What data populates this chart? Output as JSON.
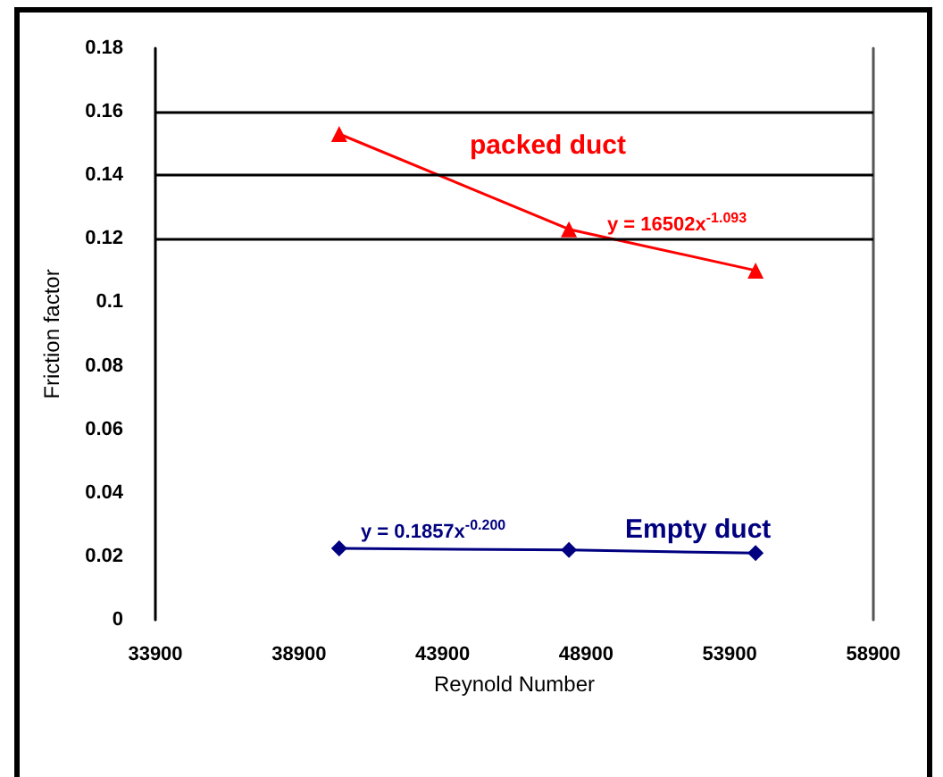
{
  "chart_data": {
    "type": "line",
    "xlabel": "Reynold Number",
    "ylabel": "Friction factor",
    "xlim": [
      33900,
      58900
    ],
    "xticks": [
      33900,
      38900,
      43900,
      48900,
      53900,
      58900
    ],
    "ylim": [
      0,
      0.18
    ],
    "yticks": [
      0,
      0.02,
      0.04,
      0.06,
      0.08,
      0.1,
      0.12,
      0.14,
      0.16,
      0.18
    ],
    "grid": false,
    "legend": false,
    "series": [
      {
        "name": "packed duct",
        "color": "#ff0000",
        "marker": "triangle",
        "x": [
          40300,
          48300,
          54800
        ],
        "values": [
          0.153,
          0.123,
          0.11
        ]
      },
      {
        "name": "Empty duct",
        "color": "#000080",
        "marker": "diamond",
        "x": [
          40300,
          48300,
          54800
        ],
        "values": [
          0.0225,
          0.022,
          0.021
        ]
      }
    ],
    "annotations": [
      "y = 16502x$^{-1.093}$",
      "y = 0.1857x$^{-0.200}$"
    ],
    "ref_lines": [
      {
        "axis": "y",
        "value": 0.12,
        "label": null,
        "color": "#000000"
      },
      {
        "axis": "y",
        "value": 0.14,
        "label": null,
        "color": "#000000"
      },
      {
        "axis": "y",
        "value": 0.16,
        "label": null,
        "color": "#000000"
      }
    ]
  }
}
